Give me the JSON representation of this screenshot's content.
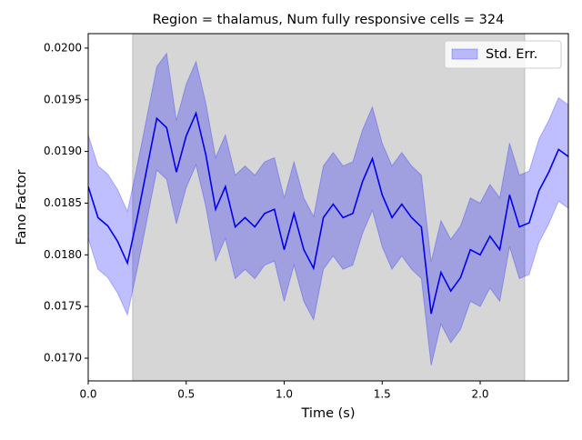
{
  "chart_data": {
    "type": "line",
    "title": "Region = thalamus, Num fully responsive cells = 324",
    "xlabel": "Time (s)",
    "ylabel": "Fano Factor",
    "xlim": [
      0,
      2.45
    ],
    "ylim": [
      0.01678,
      0.02014
    ],
    "xticks": [
      {
        "value": 0,
        "label": "0.0"
      },
      0.5,
      {
        "value": 1,
        "label": "1.0"
      },
      1.5,
      {
        "value": 2,
        "label": "2.0"
      }
    ],
    "yticks": [
      {
        "value": 0.017,
        "label": "0.0170"
      },
      0.0175,
      {
        "value": 0.018,
        "label": "0.0180"
      },
      0.0185,
      {
        "value": 0.019,
        "label": "0.0190"
      },
      0.0195,
      {
        "value": 0.02,
        "label": "0.0200"
      }
    ],
    "shaded_region": {
      "x": [
        0.227,
        2.227
      ],
      "color": "#d6d6d6"
    },
    "legend_position": "upper right",
    "x": [
      0,
      0.05,
      0.1,
      0.15,
      0.2,
      0.25,
      0.3,
      0.35,
      0.4,
      0.45,
      0.5,
      0.55,
      0.6,
      0.65,
      0.7,
      0.75,
      0.8,
      0.85,
      0.9,
      0.95,
      1,
      1.05,
      1.1,
      1.15,
      1.2,
      1.25,
      1.3,
      1.35,
      1.4,
      1.45,
      1.5,
      1.55,
      1.6,
      1.65,
      1.7,
      1.75,
      1.8,
      1.85,
      1.9,
      1.95,
      2,
      2.05,
      2.1,
      2.15,
      2.2,
      2.25,
      2.3,
      2.35,
      2.4,
      2.45
    ],
    "line": {
      "color": "#0000ee",
      "values": [
        0.01866,
        0.01836,
        0.01828,
        0.01813,
        0.01792,
        0.01836,
        0.01884,
        0.01932,
        0.01923,
        0.0188,
        0.01915,
        0.01937,
        0.01897,
        0.01844,
        0.01866,
        0.01827,
        0.01836,
        0.01827,
        0.0184,
        0.01844,
        0.01805,
        0.0184,
        0.01805,
        0.01787,
        0.01836,
        0.01849,
        0.01836,
        0.0184,
        0.01871,
        0.01893,
        0.01858,
        0.01836,
        0.01849,
        0.01836,
        0.01827,
        0.01743,
        0.01783,
        0.01765,
        0.01778,
        0.01805,
        0.018,
        0.01818,
        0.01805,
        0.01858,
        0.01827,
        0.01831,
        0.01862,
        0.0188,
        0.01902,
        0.01895
      ]
    },
    "band": {
      "name": "Std. Err.",
      "color": "#0000ff",
      "upper": [
        0.01916,
        0.01886,
        0.01878,
        0.01863,
        0.01842,
        0.01886,
        0.01934,
        0.01982,
        0.01995,
        0.0193,
        0.01965,
        0.01987,
        0.01947,
        0.01894,
        0.01916,
        0.01877,
        0.01886,
        0.01877,
        0.0189,
        0.01894,
        0.01855,
        0.0189,
        0.01855,
        0.01837,
        0.01886,
        0.01899,
        0.01886,
        0.0189,
        0.01921,
        0.01943,
        0.01908,
        0.01886,
        0.01899,
        0.01886,
        0.01877,
        0.01793,
        0.01833,
        0.01815,
        0.01828,
        0.01855,
        0.0185,
        0.01868,
        0.01855,
        0.01908,
        0.01877,
        0.01881,
        0.01912,
        0.0193,
        0.01952,
        0.01945
      ],
      "lower": [
        0.01816,
        0.01786,
        0.01778,
        0.01763,
        0.01742,
        0.01786,
        0.01834,
        0.01882,
        0.01873,
        0.0183,
        0.01865,
        0.01887,
        0.01847,
        0.01794,
        0.01816,
        0.01777,
        0.01786,
        0.01777,
        0.0179,
        0.01794,
        0.01755,
        0.0179,
        0.01755,
        0.01737,
        0.01786,
        0.01799,
        0.01786,
        0.0179,
        0.01821,
        0.01843,
        0.01808,
        0.01786,
        0.01799,
        0.01786,
        0.01777,
        0.01693,
        0.01733,
        0.01715,
        0.01728,
        0.01755,
        0.0175,
        0.01768,
        0.01755,
        0.01808,
        0.01777,
        0.01781,
        0.01812,
        0.0183,
        0.01852,
        0.01845
      ]
    }
  }
}
